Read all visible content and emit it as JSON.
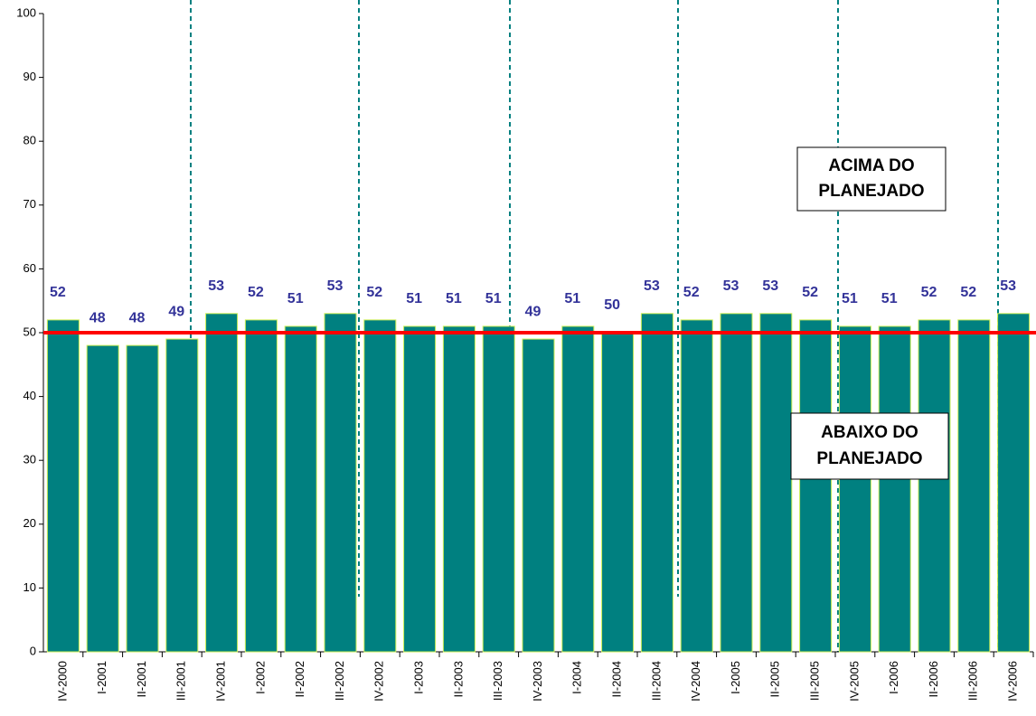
{
  "chart_data": {
    "type": "bar",
    "categories": [
      "IV-2000",
      "I-2001",
      "II-2001",
      "III-2001",
      "IV-2001",
      "I-2002",
      "II-2002",
      "III-2002",
      "IV-2002",
      "I-2003",
      "II-2003",
      "III-2003",
      "IV-2003",
      "I-2004",
      "II-2004",
      "III-2004",
      "IV-2004",
      "I-2005",
      "II-2005",
      "III-2005",
      "IV-2005",
      "I-2006",
      "II-2006",
      "III-2006",
      "IV-2006"
    ],
    "values": [
      52,
      48,
      48,
      49,
      53,
      52,
      51,
      53,
      52,
      51,
      51,
      51,
      49,
      51,
      50,
      53,
      52,
      53,
      53,
      52,
      51,
      51,
      52,
      52,
      53
    ],
    "color": "#008080",
    "label_color": "#333399",
    "target": 50,
    "target_color": "#ff0000",
    "ylim": [
      0,
      100
    ],
    "yticks": [
      0,
      10,
      20,
      30,
      40,
      50,
      60,
      70,
      80,
      90,
      100
    ],
    "grid": false,
    "annotations": [
      [
        "ACIMA DO",
        "PLANEJADO"
      ],
      [
        "ABAIXO DO",
        "PLANEJADO"
      ]
    ]
  }
}
